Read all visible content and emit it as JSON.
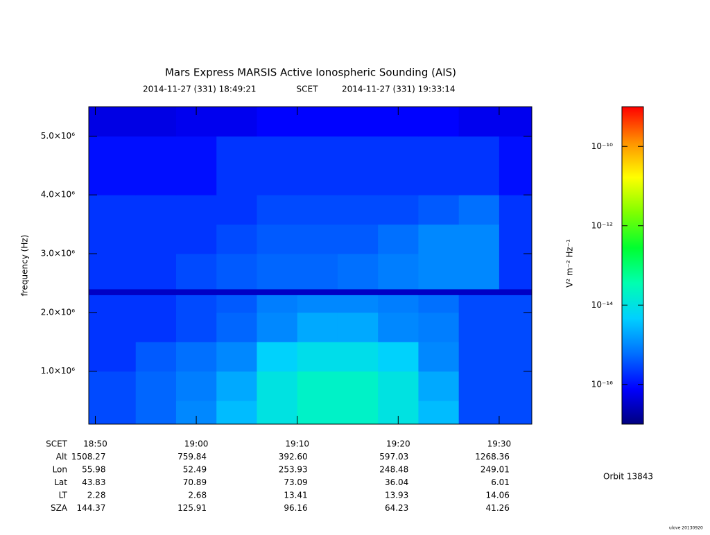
{
  "chart_data": {
    "type": "heatmap",
    "title": "Mars Express MARSIS Active Ionospheric Sounding (AIS)",
    "subtitle": [
      "2014-11-27 (331) 18:49:21",
      "SCET",
      "2014-11-27 (331) 19:33:14"
    ],
    "y_label": "frequency (Hz)",
    "xlim": [
      "18:49:21",
      "19:33:14"
    ],
    "xticks": [
      "18:50",
      "19:00",
      "19:10",
      "19:20",
      "19:30"
    ],
    "ylim": [
      100000,
      5500000
    ],
    "yticks": [
      {
        "value": 1000000,
        "label": "1.0×10⁶"
      },
      {
        "value": 2000000,
        "label": "2.0×10⁶"
      },
      {
        "value": 3000000,
        "label": "3.0×10⁶"
      },
      {
        "value": 4000000,
        "label": "4.0×10⁶"
      },
      {
        "value": 5000000,
        "label": "5.0×10⁶"
      }
    ],
    "x_bins": [
      "18:49:21",
      "18:54",
      "18:58",
      "19:02",
      "19:06",
      "19:10",
      "19:14",
      "19:18",
      "19:22",
      "19:26",
      "19:30",
      "19:33:14"
    ],
    "y_bins": [
      100000,
      500000,
      1000000,
      1500000,
      2000000,
      2300000,
      2400000,
      3000000,
      3500000,
      4000000,
      5000000,
      5500000
    ],
    "values": [
      [
        3e-16,
        5e-16,
        1e-15,
        3e-15,
        1e-14,
        2e-14,
        2e-14,
        1e-14,
        3e-15,
        3e-16,
        3e-16
      ],
      [
        3e-16,
        5e-16,
        8e-16,
        2e-15,
        1e-14,
        2e-14,
        2e-14,
        1e-14,
        2e-15,
        3e-16,
        3e-16
      ],
      [
        2e-16,
        4e-16,
        6e-16,
        1e-15,
        5e-15,
        8e-15,
        8e-15,
        5e-15,
        1e-15,
        3e-16,
        3e-16
      ],
      [
        2e-16,
        2e-16,
        3e-16,
        5e-16,
        1e-15,
        2e-15,
        2e-15,
        1e-15,
        8e-16,
        3e-16,
        3e-16
      ],
      [
        2e-16,
        2e-16,
        3e-16,
        4e-16,
        8e-16,
        1e-15,
        1e-15,
        8e-16,
        6e-16,
        3e-16,
        3e-16
      ],
      [
        3e-17,
        3e-17,
        3e-17,
        3e-17,
        3e-17,
        3e-17,
        3e-17,
        3e-17,
        3e-17,
        3e-17,
        3e-17
      ],
      [
        2e-16,
        2e-16,
        3e-16,
        4e-16,
        5e-16,
        5e-16,
        6e-16,
        8e-16,
        1e-15,
        1e-15,
        2e-16
      ],
      [
        2e-16,
        2e-16,
        2e-16,
        3e-16,
        4e-16,
        4e-16,
        4e-16,
        6e-16,
        1e-15,
        1e-15,
        2e-16
      ],
      [
        2e-16,
        2e-16,
        2e-16,
        2e-16,
        3e-16,
        3e-16,
        3e-16,
        3e-16,
        4e-16,
        6e-16,
        2e-16
      ],
      [
        1e-16,
        1e-16,
        1e-16,
        2e-16,
        2e-16,
        2e-16,
        2e-16,
        2e-16,
        2e-16,
        2e-16,
        1e-16
      ],
      [
        5e-17,
        5e-17,
        6e-17,
        6e-17,
        8e-17,
        8e-17,
        8e-17,
        8e-17,
        8e-17,
        6e-17,
        6e-17
      ]
    ],
    "zlim": [
      1e-17,
      1e-09
    ],
    "zlog": true,
    "zticks": [
      {
        "value": 1e-16,
        "label": "10⁻¹⁶"
      },
      {
        "value": 1e-14,
        "label": "10⁻¹⁴"
      },
      {
        "value": 1e-12,
        "label": "10⁻¹²"
      },
      {
        "value": 1e-10,
        "label": "10⁻¹⁰"
      }
    ],
    "z_label": "V² m⁻² Hz⁻¹",
    "colormap": [
      "#00007f",
      "#0000ff",
      "#0070ff",
      "#00d0ff",
      "#00ffb0",
      "#00ff30",
      "#80ff00",
      "#ffff00",
      "#ff9000",
      "#ff0000"
    ],
    "ephemeris": {
      "labels": [
        "SCET",
        "Alt",
        "Lon",
        "Lat",
        "LT",
        "SZA"
      ],
      "rows": [
        [
          "1508.27",
          "759.84",
          "392.60",
          "597.03",
          "1268.36"
        ],
        [
          "55.98",
          "52.49",
          "253.93",
          "248.48",
          "249.01"
        ],
        [
          "43.83",
          "70.89",
          "73.09",
          "36.04",
          "6.01"
        ],
        [
          "2.28",
          "2.68",
          "13.41",
          "13.93",
          "14.06"
        ],
        [
          "144.37",
          "125.91",
          "96.16",
          "64.23",
          "41.26"
        ]
      ]
    },
    "orbit": "Orbit 13843",
    "footer": "ulove 20130920"
  }
}
